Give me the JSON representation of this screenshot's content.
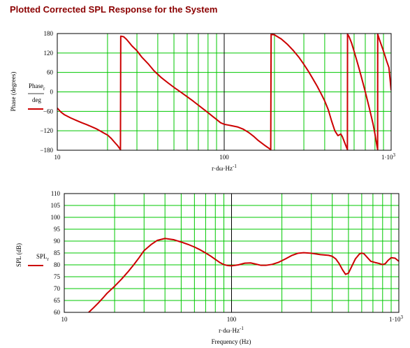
{
  "title": "Plotted Corrected SPL Response for the System",
  "colors": {
    "title": "#8b0000",
    "grid": "#00c800",
    "trace": "#cc0000",
    "frame": "#000000"
  },
  "chart_data": [
    {
      "type": "line",
      "title": "",
      "ylabel": "Phase (degrees)",
      "legend_label": "Phase",
      "legend_label_sub": "r",
      "legend_label_den": "deg",
      "xlabel": "r·dω·Hz",
      "xlabel_exp": "-1",
      "xscale": "log",
      "xlim": [
        10,
        1000
      ],
      "ylim": [
        -180,
        180
      ],
      "y_ticks": [
        -180,
        -120,
        -60,
        0,
        60,
        120,
        180
      ],
      "x_tick_labels": [
        {
          "value": 10,
          "text": "10"
        },
        {
          "value": 100,
          "text": "100"
        },
        {
          "value": 1000,
          "text": "1·10",
          "exp": "3"
        }
      ],
      "grid": true,
      "series": [
        {
          "name": "",
          "points": [
            [
              10,
              -50
            ],
            [
              10.5,
              -62
            ],
            [
              11,
              -70
            ],
            [
              12,
              -80
            ],
            [
              13,
              -88
            ],
            [
              14,
              -95
            ],
            [
              15,
              -101
            ],
            [
              16,
              -107
            ],
            [
              17,
              -113
            ],
            [
              18,
              -120
            ],
            [
              19,
              -127
            ],
            [
              20,
              -133
            ],
            [
              21,
              -143
            ],
            [
              22,
              -155
            ],
            [
              23,
              -166
            ],
            [
              23.9,
              -178
            ],
            [
              24,
              172
            ],
            [
              25,
              170
            ],
            [
              26,
              162
            ],
            [
              27,
              152
            ],
            [
              28,
              142
            ],
            [
              30,
              127
            ],
            [
              32,
              108
            ],
            [
              35,
              87
            ],
            [
              38,
              65
            ],
            [
              42,
              44
            ],
            [
              46,
              28
            ],
            [
              50,
              14
            ],
            [
              55,
              -1
            ],
            [
              60,
              -15
            ],
            [
              65,
              -28
            ],
            [
              70,
              -41
            ],
            [
              75,
              -53
            ],
            [
              80,
              -64
            ],
            [
              85,
              -75
            ],
            [
              90,
              -85
            ],
            [
              95,
              -95
            ],
            [
              100,
              -100
            ],
            [
              105,
              -102
            ],
            [
              110,
              -104
            ],
            [
              120,
              -108
            ],
            [
              130,
              -115
            ],
            [
              140,
              -125
            ],
            [
              150,
              -137
            ],
            [
              160,
              -150
            ],
            [
              175,
              -165
            ],
            [
              190,
              -178
            ],
            [
              191,
              178
            ],
            [
              200,
              176
            ],
            [
              220,
              163
            ],
            [
              240,
              146
            ],
            [
              260,
              127
            ],
            [
              280,
              107
            ],
            [
              300,
              85
            ],
            [
              320,
              63
            ],
            [
              340,
              40
            ],
            [
              360,
              18
            ],
            [
              380,
              -5
            ],
            [
              400,
              -28
            ],
            [
              420,
              -55
            ],
            [
              440,
              -90
            ],
            [
              460,
              -120
            ],
            [
              480,
              -135
            ],
            [
              500,
              -130
            ],
            [
              510,
              -138
            ],
            [
              530,
              -160
            ],
            [
              547,
              -178
            ],
            [
              548,
              178
            ],
            [
              560,
              170
            ],
            [
              580,
              150
            ],
            [
              600,
              125
            ],
            [
              620,
              100
            ],
            [
              640,
              75
            ],
            [
              660,
              50
            ],
            [
              680,
              25
            ],
            [
              700,
              0
            ],
            [
              720,
              -25
            ],
            [
              740,
              -50
            ],
            [
              760,
              -75
            ],
            [
              780,
              -100
            ],
            [
              800,
              -130
            ],
            [
              815,
              -155
            ],
            [
              830,
              -178
            ],
            [
              831,
              178
            ],
            [
              850,
              162
            ],
            [
              880,
              140
            ],
            [
              910,
              118
            ],
            [
              940,
              95
            ],
            [
              970,
              75
            ],
            [
              1000,
              5
            ]
          ]
        }
      ]
    },
    {
      "type": "line",
      "title": "",
      "ylabel": "SPL (dB)",
      "legend_label": "SPL",
      "legend_label_sub": "r",
      "xlabel": "r·dω·Hz",
      "xlabel_exp": "-1",
      "xlabel2": "Frequency (Hz)",
      "xscale": "log",
      "xlim": [
        10,
        1000
      ],
      "ylim": [
        60,
        110
      ],
      "y_ticks": [
        60,
        65,
        70,
        75,
        80,
        85,
        90,
        95,
        100,
        105,
        110
      ],
      "x_tick_labels": [
        {
          "value": 10,
          "text": "10"
        },
        {
          "value": 100,
          "text": "100"
        },
        {
          "value": 1000,
          "text": "1·10",
          "exp": "3"
        }
      ],
      "grid": true,
      "series": [
        {
          "name": "",
          "points": [
            [
              14,
              60
            ],
            [
              15,
              62
            ],
            [
              16,
              64
            ],
            [
              17,
              66
            ],
            [
              18,
              68
            ],
            [
              20,
              71
            ],
            [
              22,
              74
            ],
            [
              24,
              77
            ],
            [
              26,
              80
            ],
            [
              28,
              83
            ],
            [
              30,
              86
            ],
            [
              33,
              88.5
            ],
            [
              36,
              90.3
            ],
            [
              40,
              91.1
            ],
            [
              45,
              90.6
            ],
            [
              50,
              89.6
            ],
            [
              55,
              88.6
            ],
            [
              60,
              87.5
            ],
            [
              65,
              86.3
            ],
            [
              70,
              85
            ],
            [
              75,
              83.7
            ],
            [
              80,
              82.3
            ],
            [
              85,
              81
            ],
            [
              90,
              80.1
            ],
            [
              95,
              79.7
            ],
            [
              100,
              79.6
            ],
            [
              110,
              80
            ],
            [
              120,
              80.7
            ],
            [
              130,
              80.8
            ],
            [
              140,
              80.3
            ],
            [
              150,
              79.8
            ],
            [
              160,
              79.8
            ],
            [
              175,
              80.2
            ],
            [
              190,
              81
            ],
            [
              210,
              82.5
            ],
            [
              230,
              84
            ],
            [
              250,
              84.9
            ],
            [
              270,
              85.1
            ],
            [
              300,
              84.9
            ],
            [
              340,
              84.3
            ],
            [
              380,
              84
            ],
            [
              400,
              83.6
            ],
            [
              420,
              82.5
            ],
            [
              440,
              80.5
            ],
            [
              460,
              78
            ],
            [
              480,
              76
            ],
            [
              500,
              76.5
            ],
            [
              520,
              79
            ],
            [
              550,
              82.5
            ],
            [
              580,
              84.5
            ],
            [
              600,
              85
            ],
            [
              620,
              84.6
            ],
            [
              650,
              83
            ],
            [
              680,
              81.5
            ],
            [
              720,
              81
            ],
            [
              760,
              80.6
            ],
            [
              800,
              80.1
            ],
            [
              830,
              80.5
            ],
            [
              860,
              81.8
            ],
            [
              900,
              83
            ],
            [
              950,
              82.8
            ],
            [
              1000,
              81.5
            ]
          ]
        }
      ]
    }
  ]
}
